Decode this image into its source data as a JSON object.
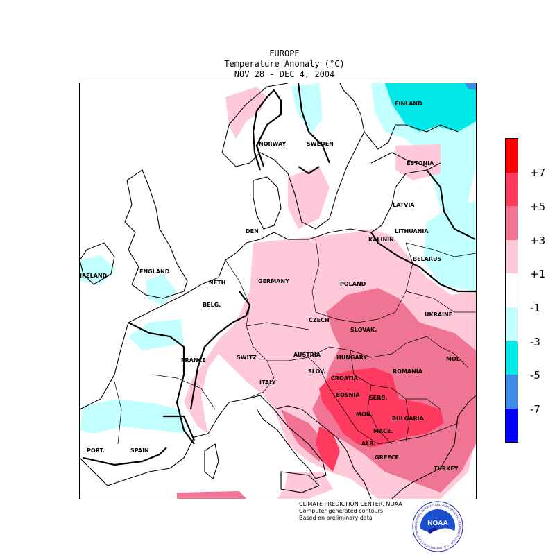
{
  "header": {
    "region": "EUROPE",
    "variable": "Temperature Anomaly (°C)",
    "period": "NOV 28 - DEC  4, 2004"
  },
  "legend": {
    "bins": [
      {
        "range": "> +7",
        "color": "#ff0000"
      },
      {
        "range": "+5 to +7",
        "color": "#ff3a5f"
      },
      {
        "range": "+3 to +5",
        "color": "#f07494"
      },
      {
        "range": "+1 to +3",
        "color": "#ffc9d9"
      },
      {
        "range": "-1 to +1",
        "color": "#ffffff"
      },
      {
        "range": "-3 to -1",
        "color": "#c2ffff"
      },
      {
        "range": "-5 to -3",
        "color": "#00e8e8"
      },
      {
        "range": "-7 to -5",
        "color": "#3d8ce8"
      },
      {
        "range": "< -7",
        "color": "#0000ff"
      }
    ],
    "ticks": [
      "+7",
      "+5",
      "+3",
      "+1",
      "-1",
      "-3",
      "-5",
      "-7"
    ]
  },
  "labels": {
    "finland": "FINLAND",
    "norway": "NORWAY",
    "sweden": "SWEDEN",
    "estonia": "ESTONIA",
    "latvia": "LATVIA",
    "lithuania": "LITHUANIA",
    "kalinin": "KALININ.",
    "belarus": "BELARUS",
    "den": "DEN",
    "ireland": "IRELAND",
    "england": "ENGLAND",
    "neth": "NETH",
    "belg": "BELG.",
    "germany": "GERMANY",
    "poland": "POLAND",
    "ukraine": "UKRAINE",
    "czech": "CZECH",
    "slovak": "SLOVAK.",
    "france": "FRANCE",
    "switz": "SWITZ",
    "austria": "AUSTRIA",
    "hungary": "HUNGARY",
    "mol": "MOL.",
    "romania": "ROMANIA",
    "slov": "SLOV.",
    "croatia": "CROATIA",
    "italy": "ITALY",
    "bosnia": "BOSNIA",
    "serb": "SERB.",
    "mon": "MON.",
    "bulgaria": "BULGARIA",
    "mace": "MACE.",
    "alb": "ALB.",
    "greece": "GREECE",
    "turkey": "TURKEY",
    "port": "PORT.",
    "spain": "SPAIN"
  },
  "credits": {
    "line1": "CLIMATE PREDICTION CENTER, NOAA",
    "line2": "Computer generated contours",
    "line3": "Based on preliminary data"
  },
  "logo": {
    "text": "NOAA",
    "ring_text": "NATIONAL OCEANIC AND ATMOSPHERIC ADMINISTRATION · U.S. DEPARTMENT OF COMMERCE"
  }
}
